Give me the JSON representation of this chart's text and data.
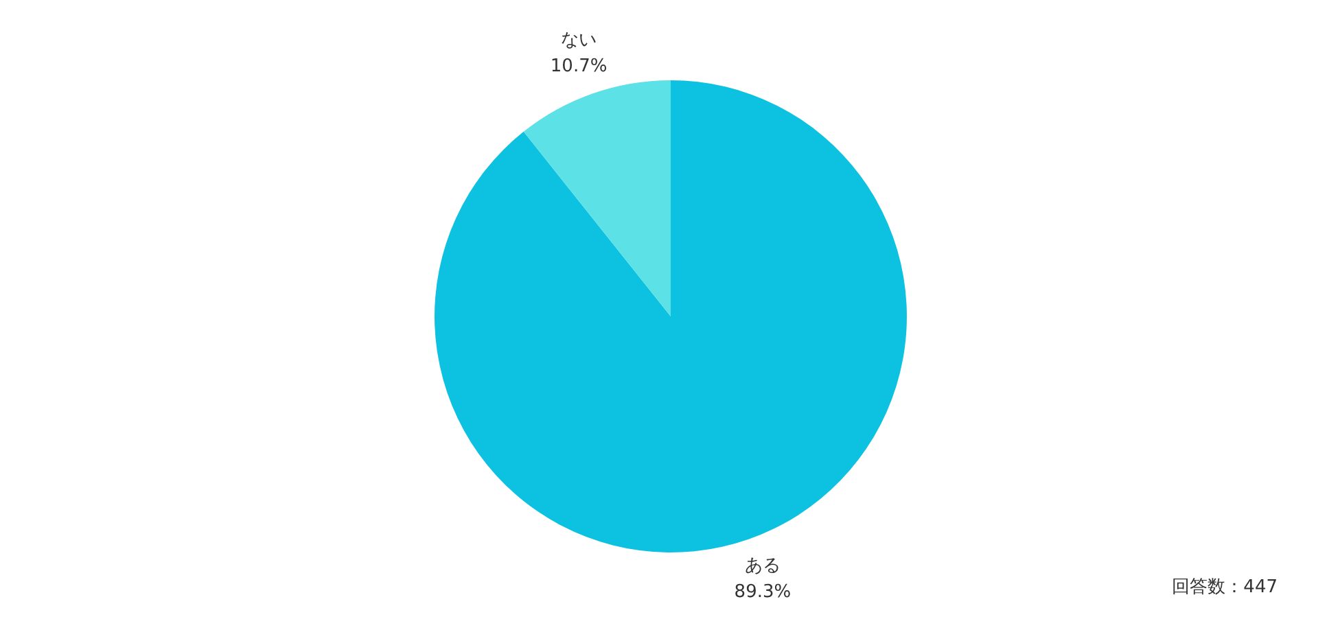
{
  "chart_data": {
    "type": "pie",
    "categories": [
      "ある",
      "ない"
    ],
    "values": [
      89.3,
      10.7
    ],
    "colors": [
      "#0dc2e0",
      "#5ce1e6"
    ],
    "value_labels": [
      "89.3%",
      "10.7%"
    ],
    "annotations": [
      "回答数：447"
    ]
  }
}
